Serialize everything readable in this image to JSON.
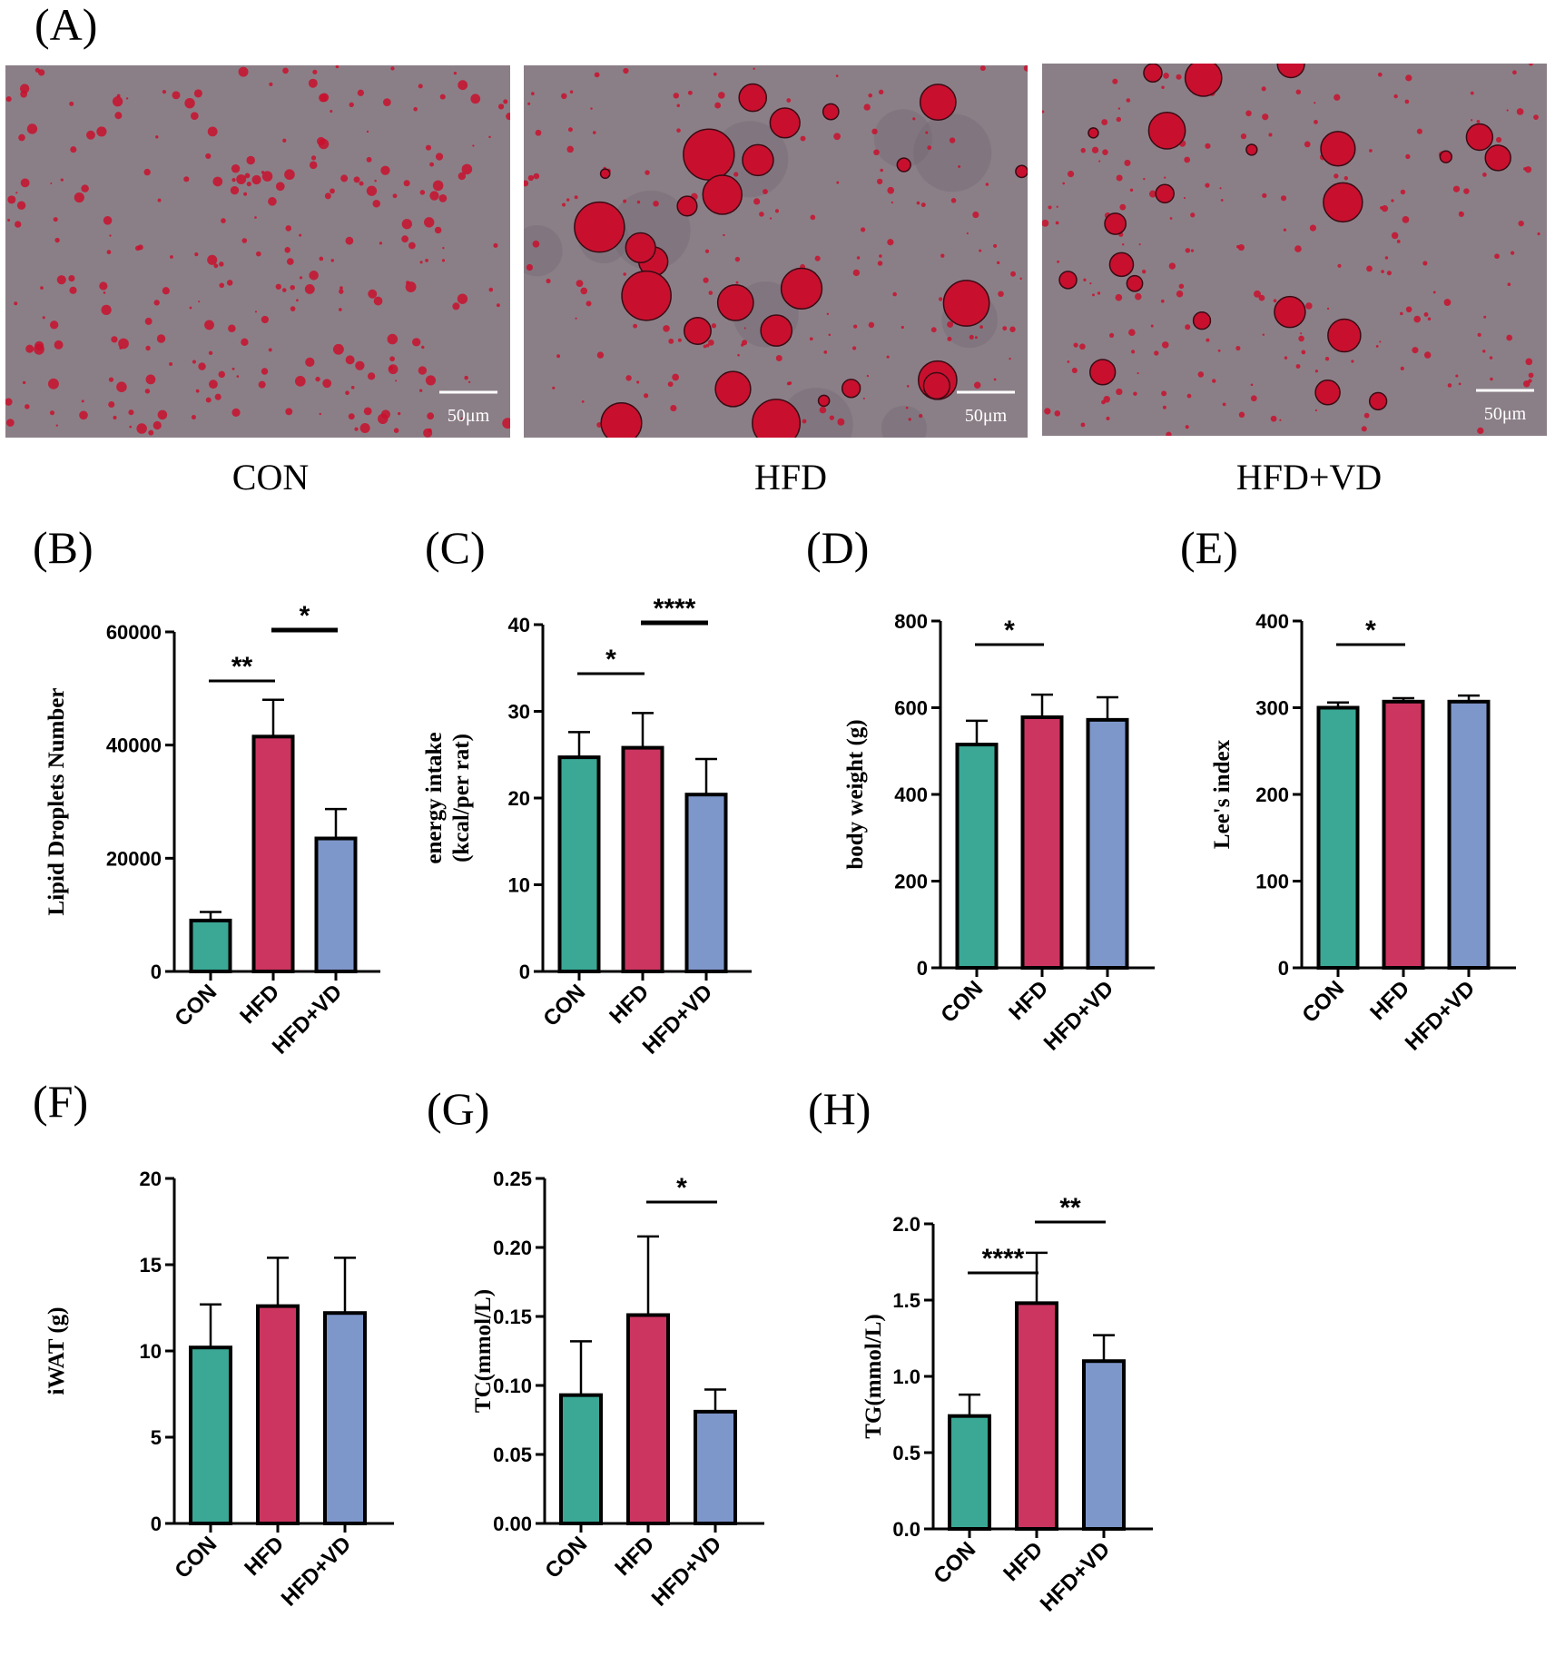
{
  "panel_labels": {
    "a": "(A)",
    "b": "(B)",
    "c": "(C)",
    "d": "(D)",
    "e": "(E)",
    "f": "(F)",
    "g": "(G)",
    "h": "(H)"
  },
  "micrographs": [
    {
      "caption": "CON",
      "scale_bar": "50μm"
    },
    {
      "caption": "HFD",
      "scale_bar": "50μm"
    },
    {
      "caption": "HFD+VD",
      "scale_bar": "50μm"
    }
  ],
  "colors": {
    "CON": "#3aa895",
    "HFD": "#cc3560",
    "HFD+VD": "#7e97cb",
    "background": "#8b7f87",
    "droplet": "#c8102e"
  },
  "chart_data": [
    {
      "id": "B",
      "type": "bar",
      "categories": [
        "CON",
        "HFD",
        "HFD+VD"
      ],
      "values": [
        9000,
        41500,
        23500
      ],
      "errors": [
        1500,
        6500,
        5200
      ],
      "ylabel": "Lipid Droplets Number",
      "ylim": [
        0,
        60000
      ],
      "yticks": [
        0,
        20000,
        40000,
        60000
      ],
      "ytick_labels": [
        "0",
        "20000",
        "40000",
        "60000"
      ],
      "significance": [
        {
          "from": 0,
          "to": 1,
          "label": "**",
          "level": 1
        },
        {
          "from": 1,
          "to": 2,
          "label": "*",
          "level": 2
        }
      ]
    },
    {
      "id": "C",
      "type": "bar",
      "categories": [
        "CON",
        "HFD",
        "HFD+VD"
      ],
      "values": [
        24.7,
        25.8,
        20.4
      ],
      "errors": [
        2.9,
        4.0,
        4.1
      ],
      "ylabel": "energy intake",
      "ylabel2": "(kcal/per rat)",
      "ylim": [
        0,
        40
      ],
      "yticks": [
        0,
        10,
        20,
        30,
        40
      ],
      "ytick_labels": [
        "0",
        "10",
        "20",
        "30",
        "40"
      ],
      "significance": [
        {
          "from": 0,
          "to": 1,
          "label": "*",
          "level": 1
        },
        {
          "from": 1,
          "to": 2,
          "label": "****",
          "level": 2
        }
      ]
    },
    {
      "id": "D",
      "type": "bar",
      "categories": [
        "CON",
        "HFD",
        "HFD+VD"
      ],
      "values": [
        515,
        578,
        572
      ],
      "errors": [
        55,
        52,
        52
      ],
      "ylabel": "body weight (g)",
      "ylim": [
        0,
        800
      ],
      "yticks": [
        0,
        200,
        400,
        600,
        800
      ],
      "ytick_labels": [
        "0",
        "200",
        "400",
        "600",
        "800"
      ],
      "significance": [
        {
          "from": 0,
          "to": 1,
          "label": "*",
          "level": 1
        }
      ]
    },
    {
      "id": "E",
      "type": "bar",
      "categories": [
        "CON",
        "HFD",
        "HFD+VD"
      ],
      "values": [
        300,
        307,
        307
      ],
      "errors": [
        6,
        4,
        7
      ],
      "ylabel": "Lee's index",
      "ylim": [
        0,
        400
      ],
      "yticks": [
        0,
        100,
        200,
        300,
        400
      ],
      "ytick_labels": [
        "0",
        "100",
        "200",
        "300",
        "400"
      ],
      "significance": [
        {
          "from": 0,
          "to": 1,
          "label": "*",
          "level": 1
        }
      ]
    },
    {
      "id": "F",
      "type": "bar",
      "categories": [
        "CON",
        "HFD",
        "HFD+VD"
      ],
      "values": [
        10.2,
        12.6,
        12.2
      ],
      "errors": [
        2.5,
        2.8,
        3.2
      ],
      "ylabel": "iWAT (g)",
      "ylim": [
        0,
        20
      ],
      "yticks": [
        0,
        5,
        10,
        15,
        20
      ],
      "ytick_labels": [
        "0",
        "5",
        "10",
        "15",
        "20"
      ],
      "significance": []
    },
    {
      "id": "G",
      "type": "bar",
      "categories": [
        "CON",
        "HFD",
        "HFD+VD"
      ],
      "values": [
        0.093,
        0.151,
        0.081
      ],
      "errors": [
        0.039,
        0.057,
        0.016
      ],
      "ylabel": "TC(mmol/L)",
      "ylim": [
        0,
        0.25
      ],
      "yticks": [
        0,
        0.05,
        0.1,
        0.15,
        0.2,
        0.25
      ],
      "ytick_labels": [
        "0.00",
        "0.05",
        "0.10",
        "0.15",
        "0.20",
        "0.25"
      ],
      "significance": [
        {
          "from": 1,
          "to": 2,
          "label": "*",
          "level": 1
        }
      ]
    },
    {
      "id": "H",
      "type": "bar",
      "categories": [
        "CON",
        "HFD",
        "HFD+VD"
      ],
      "values": [
        0.74,
        1.48,
        1.1
      ],
      "errors": [
        0.14,
        0.33,
        0.17
      ],
      "ylabel": "TG(mmol/L)",
      "ylim": [
        0,
        2.0
      ],
      "yticks": [
        0,
        0.5,
        1.0,
        1.5,
        2.0
      ],
      "ytick_labels": [
        "0.0",
        "0.5",
        "1.0",
        "1.5",
        "2.0"
      ],
      "significance": [
        {
          "from": 0,
          "to": 1,
          "label": "****",
          "level": 1
        },
        {
          "from": 1,
          "to": 2,
          "label": "**",
          "level": 2
        }
      ]
    }
  ]
}
